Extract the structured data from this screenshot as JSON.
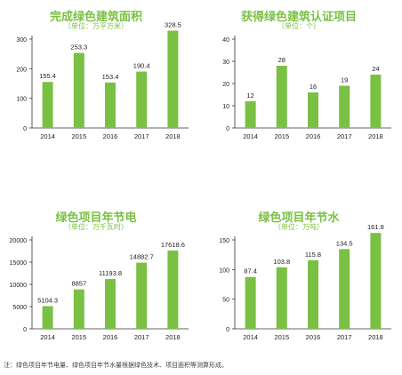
{
  "chart_data": [
    {
      "type": "bar",
      "title": "完成绿色建筑面积",
      "unit": "（单位：万平方米）",
      "categories": [
        "2014",
        "2015",
        "2016",
        "2017",
        "2018"
      ],
      "values": [
        155.4,
        253.3,
        153.4,
        190.4,
        328.5
      ],
      "value_labels": [
        "155.4",
        "253.3",
        "153.4",
        "190.4",
        "328.5"
      ],
      "ylim": [
        0,
        300
      ],
      "yticks": [
        0,
        100,
        200,
        300
      ],
      "bar_color": "#7ac143"
    },
    {
      "type": "bar",
      "title": "获得绿色建筑认证项目",
      "unit": "（单位：个）",
      "categories": [
        "2014",
        "2015",
        "2016",
        "2017",
        "2018"
      ],
      "values": [
        12,
        28,
        16,
        19,
        24
      ],
      "value_labels": [
        "12",
        "28",
        "16",
        "19",
        "24"
      ],
      "ylim": [
        0,
        40
      ],
      "yticks": [
        0,
        10,
        20,
        30,
        40
      ],
      "bar_color": "#7ac143"
    },
    {
      "type": "bar",
      "title": "绿色项目年节电",
      "unit": "（单位：万千瓦时）",
      "categories": [
        "2014",
        "2015",
        "2016",
        "2017",
        "2018"
      ],
      "values": [
        5104.3,
        8857,
        11193.8,
        14882.7,
        17618.6
      ],
      "value_labels": [
        "5104.3",
        "8857",
        "11193.8",
        "14882.7",
        "17618.6"
      ],
      "ylim": [
        0,
        20000
      ],
      "yticks": [
        0,
        5000,
        10000,
        15000,
        20000
      ],
      "bar_color": "#7ac143"
    },
    {
      "type": "bar",
      "title": "绿色项目年节水",
      "unit": "（单位：万吨）",
      "categories": [
        "2014",
        "2015",
        "2016",
        "2017",
        "2018"
      ],
      "values": [
        87.4,
        103.8,
        115.8,
        134.5,
        161.8
      ],
      "value_labels": [
        "87.4",
        "103.8",
        "115.8",
        "134.5",
        "161.8"
      ],
      "ylim": [
        0,
        150
      ],
      "yticks": [
        0,
        50,
        100,
        150
      ],
      "bar_color": "#7ac143"
    }
  ],
  "footnote": "注：绿色项目年节电量、绿色项目年节水量根据绿色技术、项目面积等测算形成。"
}
